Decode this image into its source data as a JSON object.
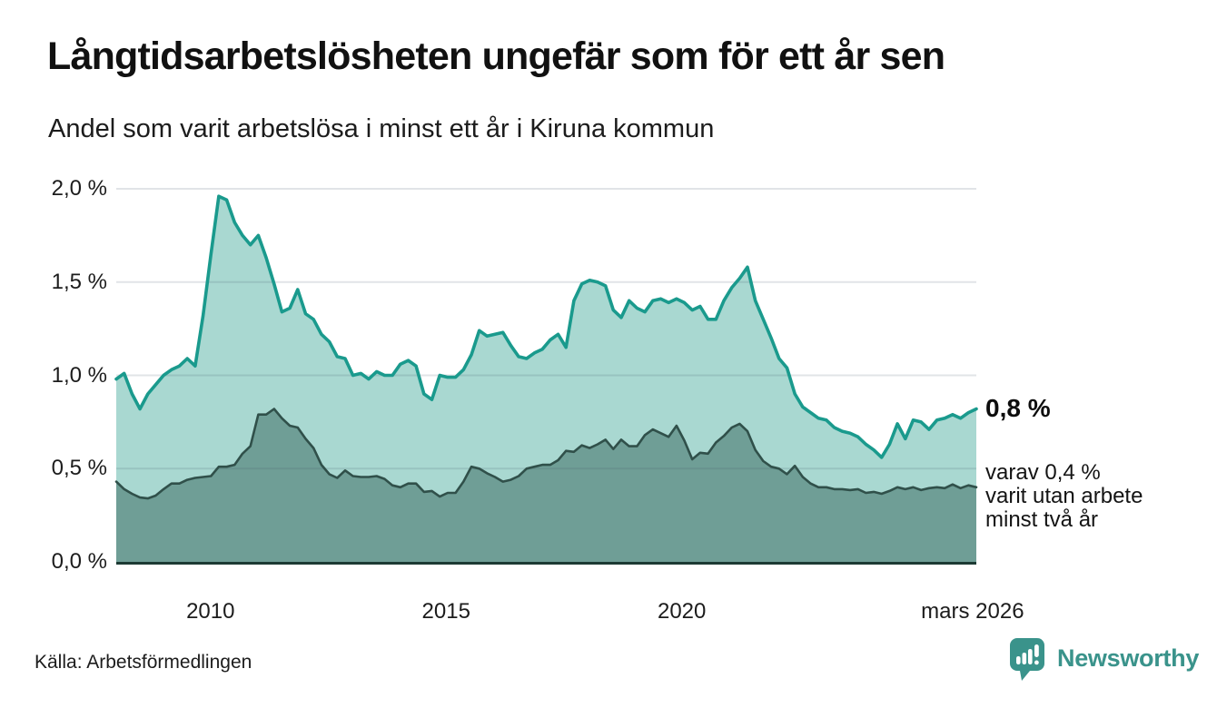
{
  "chart_data": {
    "type": "area",
    "title": "Långtidsarbetslösheten ungefär som för ett år sen",
    "subtitle": "Andel som varit arbetslösa i minst ett år i Kiruna kommun",
    "grid": true,
    "x_axis": {
      "start_year": 2008.0,
      "end_year_fraction": 2026.25,
      "ticks": [
        {
          "label": "2010",
          "year": 2010
        },
        {
          "label": "2015",
          "year": 2015
        },
        {
          "label": "2020",
          "year": 2020
        },
        {
          "label": "mars 2026",
          "year": 2026.17
        }
      ]
    },
    "y_axis": {
      "unit": "%",
      "min": 0.0,
      "max": 2.0,
      "ticks": [
        {
          "label": "2,0 %",
          "value": 2.0
        },
        {
          "label": "1,5 %",
          "value": 1.5
        },
        {
          "label": "1,0 %",
          "value": 1.0
        },
        {
          "label": "0,5 %",
          "value": 0.5
        },
        {
          "label": "0,0 %",
          "value": 0.0
        }
      ]
    },
    "series": [
      {
        "name": "Andel som varit arbetslösa minst ett år",
        "line_color": "#1a9a8d",
        "fill_color": "#a9d8d1",
        "end_value": 0.8,
        "values": [
          0.98,
          1.01,
          0.9,
          0.82,
          0.9,
          0.95,
          1.0,
          1.03,
          1.05,
          1.09,
          1.05,
          1.32,
          1.65,
          1.96,
          1.94,
          1.82,
          1.75,
          1.7,
          1.75,
          1.63,
          1.49,
          1.34,
          1.36,
          1.46,
          1.33,
          1.3,
          1.22,
          1.18,
          1.1,
          1.09,
          1.0,
          1.01,
          0.98,
          1.02,
          1.0,
          1.0,
          1.06,
          1.08,
          1.05,
          0.9,
          0.87,
          1.0,
          0.99,
          0.99,
          1.03,
          1.11,
          1.24,
          1.21,
          1.22,
          1.23,
          1.16,
          1.1,
          1.09,
          1.12,
          1.14,
          1.19,
          1.22,
          1.15,
          1.4,
          1.49,
          1.51,
          1.5,
          1.48,
          1.35,
          1.31,
          1.4,
          1.36,
          1.34,
          1.4,
          1.41,
          1.39,
          1.41,
          1.39,
          1.35,
          1.37,
          1.3,
          1.3,
          1.4,
          1.47,
          1.52,
          1.58,
          1.4,
          1.3,
          1.2,
          1.09,
          1.04,
          0.9,
          0.83,
          0.8,
          0.77,
          0.76,
          0.72,
          0.7,
          0.69,
          0.67,
          0.63,
          0.6,
          0.56,
          0.63,
          0.74,
          0.66,
          0.76,
          0.75,
          0.71,
          0.76,
          0.77,
          0.79,
          0.77,
          0.8,
          0.82
        ]
      },
      {
        "name": "Andel som varit utan arbete minst två år",
        "line_color": "#30504a",
        "fill_color": "#6f9e96",
        "end_value": 0.4,
        "values": [
          0.43,
          0.39,
          0.365,
          0.345,
          0.34,
          0.355,
          0.39,
          0.42,
          0.42,
          0.44,
          0.45,
          0.455,
          0.46,
          0.51,
          0.51,
          0.52,
          0.58,
          0.62,
          0.79,
          0.79,
          0.82,
          0.77,
          0.73,
          0.72,
          0.66,
          0.61,
          0.52,
          0.47,
          0.45,
          0.49,
          0.46,
          0.455,
          0.455,
          0.46,
          0.445,
          0.41,
          0.4,
          0.42,
          0.42,
          0.375,
          0.38,
          0.35,
          0.37,
          0.37,
          0.43,
          0.51,
          0.5,
          0.475,
          0.455,
          0.43,
          0.44,
          0.46,
          0.5,
          0.51,
          0.52,
          0.52,
          0.545,
          0.595,
          0.59,
          0.625,
          0.61,
          0.63,
          0.655,
          0.605,
          0.655,
          0.62,
          0.62,
          0.68,
          0.71,
          0.69,
          0.67,
          0.73,
          0.65,
          0.55,
          0.585,
          0.58,
          0.64,
          0.675,
          0.72,
          0.74,
          0.7,
          0.6,
          0.54,
          0.51,
          0.5,
          0.47,
          0.515,
          0.455,
          0.42,
          0.4,
          0.4,
          0.39,
          0.39,
          0.385,
          0.39,
          0.37,
          0.375,
          0.365,
          0.38,
          0.4,
          0.39,
          0.4,
          0.385,
          0.395,
          0.4,
          0.395,
          0.415,
          0.395,
          0.41,
          0.4
        ]
      }
    ],
    "annotations": {
      "end_total": "0,8 %",
      "end_sub_lines": [
        "varav 0,4 %",
        "varit utan arbete",
        "minst två år"
      ]
    }
  },
  "footer": {
    "source": "Källa: Arbetsförmedlingen",
    "brand_name": "Newsworthy",
    "brand_color": "#3a938b"
  }
}
